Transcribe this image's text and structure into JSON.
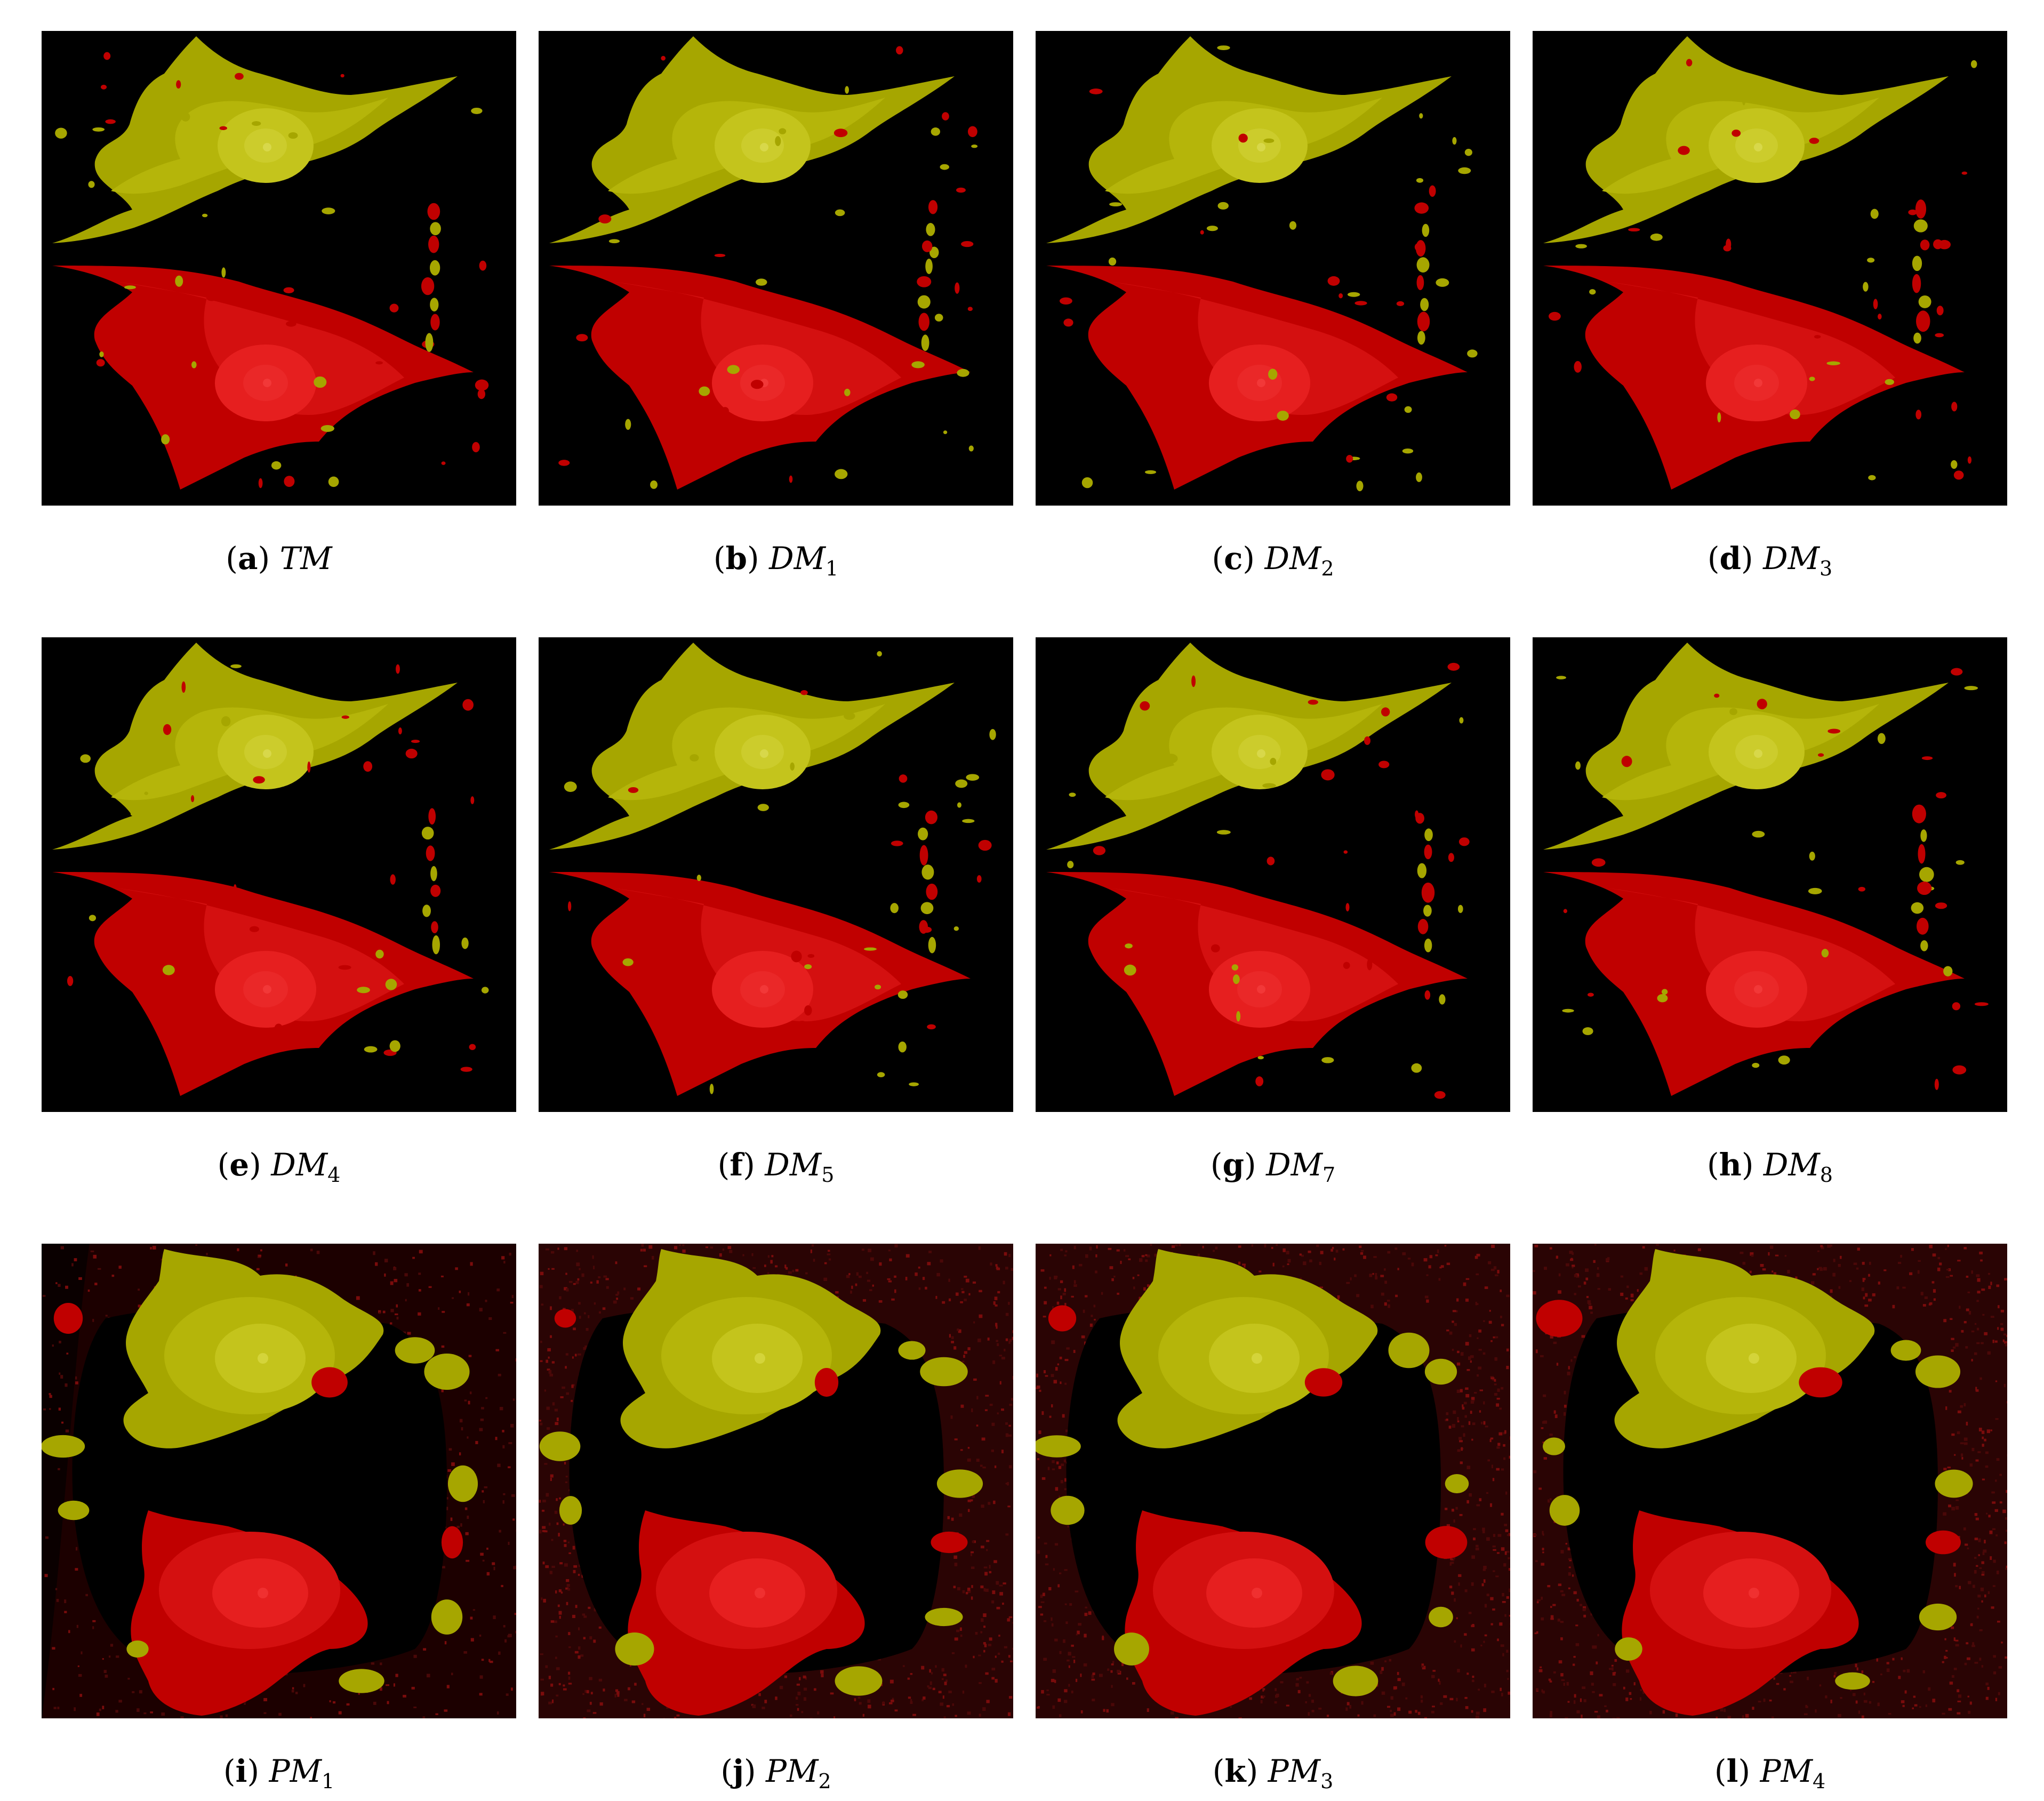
{
  "figure": {
    "panels": [
      {
        "letter": "a",
        "symbol": "TM",
        "subscript": "",
        "variant": "dm",
        "mirror": false
      },
      {
        "letter": "b",
        "symbol": "DM",
        "subscript": "1",
        "variant": "dm",
        "mirror": false
      },
      {
        "letter": "c",
        "symbol": "DM",
        "subscript": "2",
        "variant": "dm",
        "mirror": false
      },
      {
        "letter": "d",
        "symbol": "DM",
        "subscript": "3",
        "variant": "dm",
        "mirror": false
      },
      {
        "letter": "e",
        "symbol": "DM",
        "subscript": "4",
        "variant": "dm",
        "mirror": false
      },
      {
        "letter": "f",
        "symbol": "DM",
        "subscript": "5",
        "variant": "dm",
        "mirror": false
      },
      {
        "letter": "g",
        "symbol": "DM",
        "subscript": "7",
        "variant": "dm",
        "mirror": false
      },
      {
        "letter": "h",
        "symbol": "DM",
        "subscript": "8",
        "variant": "dm",
        "mirror": false
      },
      {
        "letter": "i",
        "symbol": "PM",
        "subscript": "1",
        "variant": "pm1",
        "mirror": false
      },
      {
        "letter": "j",
        "symbol": "PM",
        "subscript": "2",
        "variant": "pm",
        "mirror": false
      },
      {
        "letter": "k",
        "symbol": "PM",
        "subscript": "3",
        "variant": "pm",
        "mirror": false
      },
      {
        "letter": "l",
        "symbol": "PM",
        "subscript": "4",
        "variant": "pm",
        "mirror": false
      }
    ],
    "colors": {
      "background": "#000000",
      "yellow_outer": "#a6a600",
      "yellow_mid": "#b5b50a",
      "yellow_core": "#c4c41c",
      "red_outer": "#c00000",
      "red_mid": "#d41010",
      "red_core": "#e61f1f",
      "noise_bg": "#4a0808"
    }
  }
}
